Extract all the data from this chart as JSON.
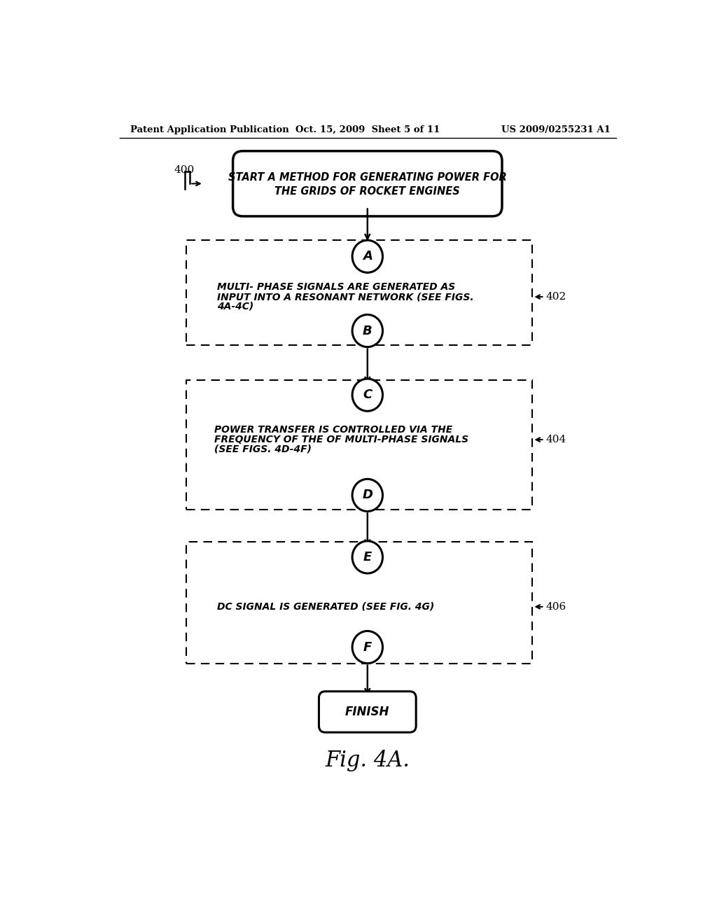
{
  "header_left": "Patent Application Publication",
  "header_center": "Oct. 15, 2009  Sheet 5 of 11",
  "header_right": "US 2009/0255231 A1",
  "fig_label": "Fig. 4A.",
  "ref_400": "400",
  "ref_402": "402",
  "ref_404": "404",
  "ref_406": "406",
  "start_text_line1": "START A METHOD FOR GENERATING POWER FOR",
  "start_text_line2": "THE GRIDS OF ROCKET ENGINES",
  "finish_text": "FINISH",
  "box1_text_line1": "MULTI- PHASE SIGNALS ARE GENERATED AS",
  "box1_text_line2": "INPUT INTO A RESONANT NETWORK (SEE FIGS.",
  "box1_text_line3": "4A-4C)",
  "box2_text_line1": "POWER TRANSFER IS CONTROLLED VIA THE",
  "box2_text_line2": "FREQUENCY OF THE OF MULTI-PHASE SIGNALS",
  "box2_text_line3": "(SEE FIGS. 4D-4F)",
  "box3_text": "DC SIGNAL IS GENERATED (SEE FIG. 4G)",
  "bg_color": "#ffffff",
  "fg_color": "#000000"
}
